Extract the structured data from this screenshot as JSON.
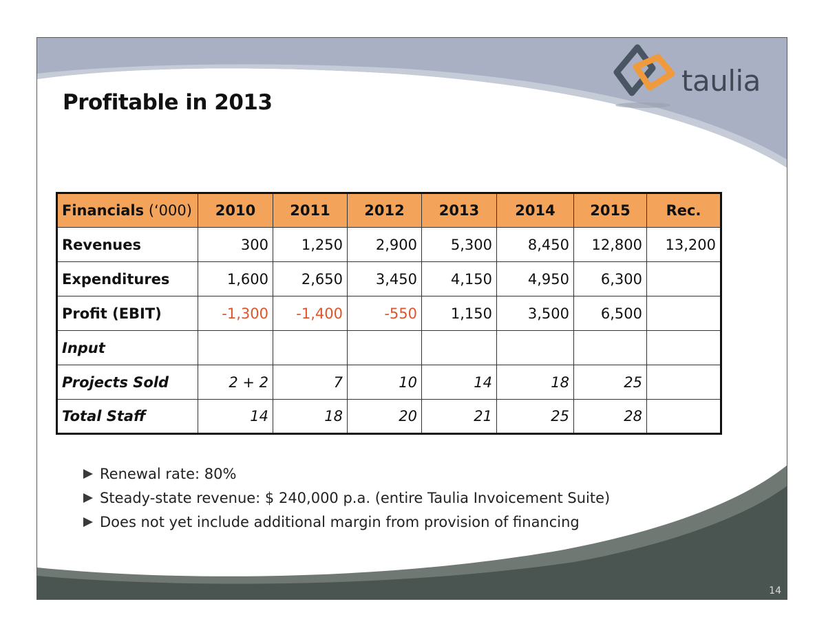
{
  "slide": {
    "title": "Profitable in 2013",
    "page_number": "14"
  },
  "logo": {
    "text": "taulia",
    "colors": {
      "gray": "#4a5563",
      "orange": "#f09a3e"
    }
  },
  "table": {
    "header_label": "Financials",
    "header_unit": " (‘000)",
    "columns": [
      "2010",
      "2011",
      "2012",
      "2013",
      "2014",
      "2015",
      "Rec."
    ],
    "header_color": "#f3a45a",
    "negative_color": "#e0552a",
    "rows": [
      {
        "label": "Revenues",
        "cells": [
          "300",
          "1,250",
          "2,900",
          "5,300",
          "8,450",
          "12,800",
          "13,200"
        ]
      },
      {
        "label": "Expenditures",
        "cells": [
          "1,600",
          "2,650",
          "3,450",
          "4,150",
          "4,950",
          "6,300",
          ""
        ]
      },
      {
        "label": "Profit (EBIT)",
        "cells": [
          "-1,300",
          "-1,400",
          "-550",
          "1,150",
          "3,500",
          "6,500",
          ""
        ]
      },
      {
        "label": "Input",
        "cells": [
          "",
          "",
          "",
          "",
          "",
          "",
          ""
        ]
      },
      {
        "label": "Projects Sold",
        "cells": [
          "2 + 2",
          "7",
          "10",
          "14",
          "18",
          "25",
          ""
        ]
      },
      {
        "label": "Total Staff",
        "cells": [
          "14",
          "18",
          "20",
          "21",
          "25",
          "28",
          ""
        ]
      }
    ]
  },
  "bullets": [
    "Renewal rate: 80%",
    "Steady-state revenue:  $ 240,000 p.a. (entire Taulia Invoicement Suite)",
    "Does not yet include additional margin from provision of financing"
  ],
  "theme": {
    "top_swoosh": "#a9b0c4",
    "bottom_swoosh_dark": "#4a5450",
    "bottom_swoosh_light": "#6f7873"
  }
}
